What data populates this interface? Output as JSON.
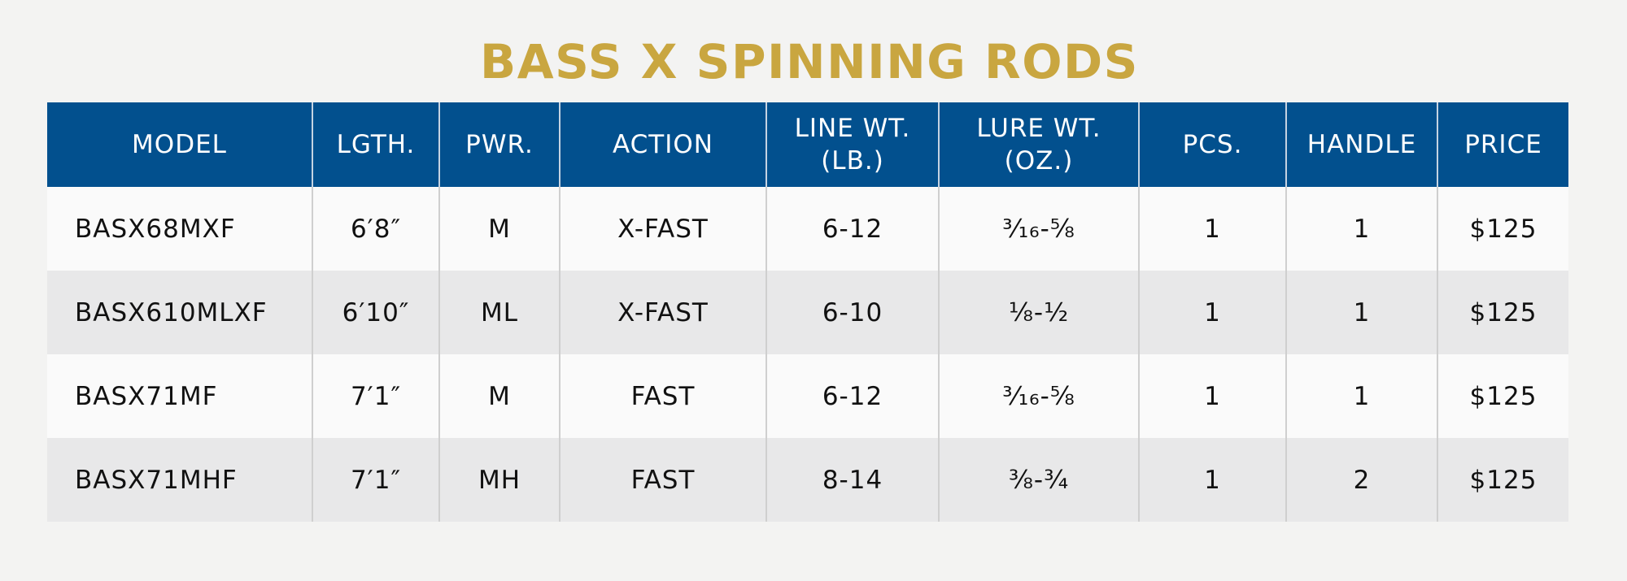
{
  "title": "BASS X SPINNING RODS",
  "table": {
    "headers": {
      "model": "MODEL",
      "lgth": "LGTH.",
      "pwr": "PWR.",
      "action": "ACTION",
      "line_wt_1": "LINE WT.",
      "line_wt_2": "(LB.)",
      "lure_wt_1": "LURE WT.",
      "lure_wt_2": "(OZ.)",
      "pcs": "PCS.",
      "handle": "HANDLE",
      "price": "PRICE"
    },
    "rows": [
      {
        "model": "BASX68MXF",
        "lgth": "6′8″",
        "pwr": "M",
        "action": "X-FAST",
        "line_wt": "6-12",
        "lure_wt": "³⁄₁₆-⅝",
        "pcs": "1",
        "handle": "1",
        "price": "$125"
      },
      {
        "model": "BASX610MLXF",
        "lgth": "6′10″",
        "pwr": "ML",
        "action": "X-FAST",
        "line_wt": "6-10",
        "lure_wt": "⅛-½",
        "pcs": "1",
        "handle": "1",
        "price": "$125"
      },
      {
        "model": "BASX71MF",
        "lgth": "7′1″",
        "pwr": "M",
        "action": "FAST",
        "line_wt": "6-12",
        "lure_wt": "³⁄₁₆-⅝",
        "pcs": "1",
        "handle": "1",
        "price": "$125"
      },
      {
        "model": "BASX71MHF",
        "lgth": "7′1″",
        "pwr": "MH",
        "action": "FAST",
        "line_wt": "8-14",
        "lure_wt": "⅜-¾",
        "pcs": "1",
        "handle": "2",
        "price": "$125"
      }
    ]
  },
  "colors": {
    "title": "#c9a640",
    "header_background": "#02508e",
    "header_text": "#ffffff",
    "row_light": "#fafafa",
    "row_dark": "#e8e8e9",
    "page_background": "#f3f3f2"
  }
}
